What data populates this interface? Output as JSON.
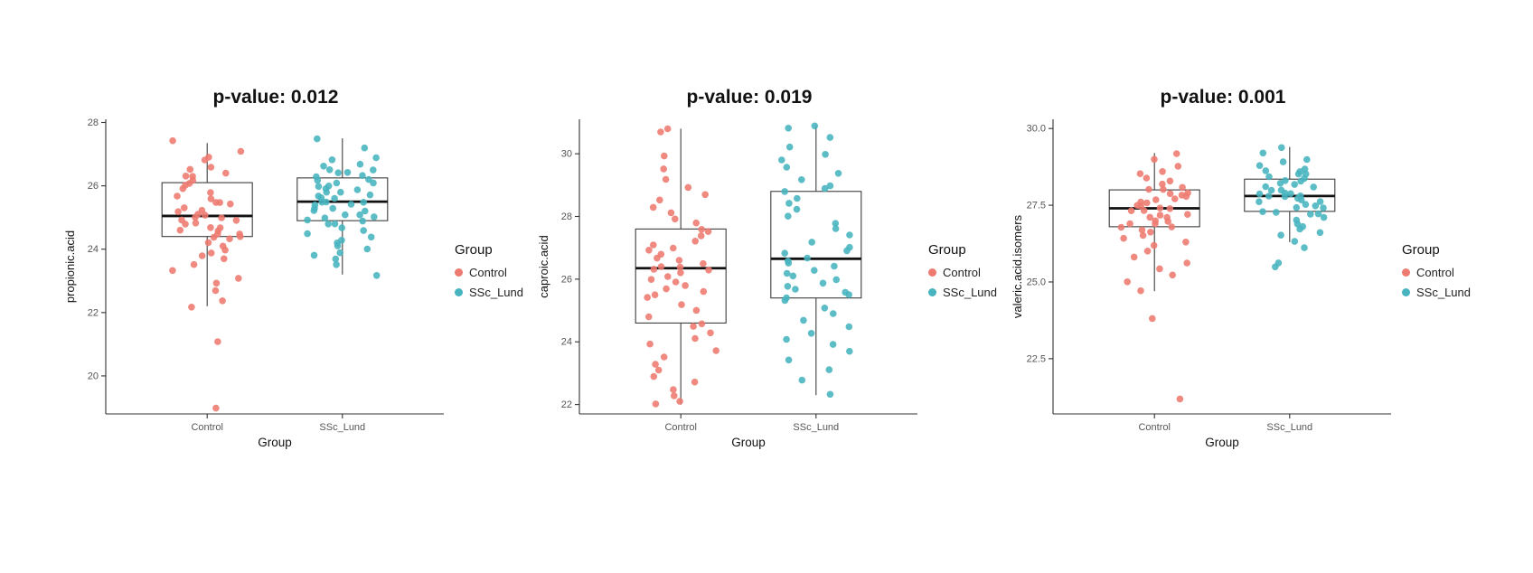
{
  "colors": {
    "control": "#EE7A70",
    "ssc_lund": "#47B4BF",
    "box_stroke": "#3d3d3d",
    "median": "#111111",
    "axis": "#333333",
    "tick_text": "#555555",
    "axis_title_text": "#111111"
  },
  "legend": {
    "title": "Group",
    "items": [
      {
        "label": "Control",
        "color_key": "control"
      },
      {
        "label": "SSc_Lund",
        "color_key": "ssc_lund"
      }
    ]
  },
  "chart_data": [
    {
      "type": "boxplot-jitter",
      "title": "p-value: 0.012",
      "ylabel": "propionic.acid",
      "xlabel": "Group",
      "categories": [
        "Control",
        "SSc_Lund"
      ],
      "ylim": [
        18.8,
        28.1
      ],
      "yticks": [
        20,
        22,
        24,
        26,
        28
      ],
      "ytick_labels": [
        "20",
        "22",
        "24",
        "26",
        "28"
      ],
      "grid": false,
      "legend_position": "right",
      "series": [
        {
          "name": "Control",
          "color_key": "control",
          "box": {
            "whisker_low": 22.2,
            "q1": 24.4,
            "median": 25.05,
            "q3": 26.1,
            "whisker_high": 27.35
          },
          "points": [
            27.4,
            27.1,
            26.9,
            26.8,
            26.6,
            26.5,
            26.4,
            26.3,
            26.3,
            26.2,
            26.1,
            26.0,
            25.9,
            25.8,
            25.7,
            25.6,
            25.5,
            25.5,
            25.4,
            25.3,
            25.2,
            25.2,
            25.1,
            25.1,
            25.0,
            25.0,
            24.9,
            24.9,
            24.8,
            24.8,
            24.7,
            24.7,
            24.6,
            24.6,
            24.5,
            24.5,
            24.4,
            24.4,
            24.3,
            24.2,
            24.1,
            24.0,
            23.9,
            23.8,
            23.7,
            23.5,
            23.3,
            23.1,
            22.9,
            22.7,
            22.4,
            22.2,
            21.1,
            19.0
          ]
        },
        {
          "name": "SSc_Lund",
          "color_key": "ssc_lund",
          "box": {
            "whisker_low": 23.2,
            "q1": 24.9,
            "median": 25.5,
            "q3": 26.25,
            "whisker_high": 27.5
          },
          "points": [
            27.5,
            27.2,
            26.9,
            26.8,
            26.7,
            26.6,
            26.5,
            26.5,
            26.4,
            26.4,
            26.3,
            26.3,
            26.2,
            26.2,
            26.1,
            26.1,
            26.0,
            26.0,
            25.9,
            25.9,
            25.8,
            25.8,
            25.7,
            25.7,
            25.6,
            25.6,
            25.5,
            25.5,
            25.5,
            25.4,
            25.4,
            25.3,
            25.3,
            25.2,
            25.2,
            25.1,
            25.1,
            25.0,
            25.0,
            24.9,
            24.9,
            24.8,
            24.8,
            24.7,
            24.6,
            24.5,
            24.4,
            24.3,
            24.2,
            24.1,
            24.0,
            23.9,
            23.8,
            23.7,
            23.5,
            23.2
          ]
        }
      ]
    },
    {
      "type": "boxplot-jitter",
      "title": "p-value: 0.019",
      "ylabel": "caproic.acid",
      "xlabel": "Group",
      "categories": [
        "Control",
        "SSc_Lund"
      ],
      "ylim": [
        21.7,
        31.1
      ],
      "yticks": [
        22,
        24,
        26,
        28,
        30
      ],
      "ytick_labels": [
        "22",
        "24",
        "26",
        "28",
        "30"
      ],
      "grid": false,
      "legend_position": "right",
      "series": [
        {
          "name": "Control",
          "color_key": "control",
          "box": {
            "whisker_low": 22.0,
            "q1": 24.6,
            "median": 26.35,
            "q3": 27.6,
            "whisker_high": 30.8
          },
          "points": [
            30.8,
            30.7,
            29.9,
            29.5,
            29.2,
            28.9,
            28.7,
            28.5,
            28.3,
            28.1,
            27.9,
            27.8,
            27.6,
            27.5,
            27.4,
            27.2,
            27.1,
            27.0,
            26.9,
            26.8,
            26.7,
            26.6,
            26.5,
            26.4,
            26.4,
            26.3,
            26.3,
            26.2,
            26.1,
            26.0,
            25.9,
            25.8,
            25.7,
            25.6,
            25.5,
            25.4,
            25.2,
            25.0,
            24.8,
            24.6,
            24.5,
            24.3,
            24.1,
            23.9,
            23.7,
            23.5,
            23.3,
            23.1,
            22.9,
            22.7,
            22.5,
            22.3,
            22.1,
            22.0
          ]
        },
        {
          "name": "SSc_Lund",
          "color_key": "ssc_lund",
          "box": {
            "whisker_low": 22.3,
            "q1": 25.4,
            "median": 26.65,
            "q3": 28.8,
            "whisker_high": 30.9
          },
          "points": [
            30.9,
            30.8,
            30.5,
            30.2,
            30.0,
            29.8,
            29.6,
            29.4,
            29.2,
            29.0,
            28.9,
            28.8,
            28.6,
            28.4,
            28.2,
            28.0,
            27.8,
            27.6,
            27.4,
            27.2,
            27.0,
            26.9,
            26.8,
            26.7,
            26.6,
            26.5,
            26.4,
            26.3,
            26.2,
            26.1,
            26.0,
            25.9,
            25.8,
            25.7,
            25.6,
            25.5,
            25.4,
            25.3,
            25.1,
            24.9,
            24.7,
            24.5,
            24.3,
            24.1,
            23.9,
            23.7,
            23.4,
            23.1,
            22.8,
            22.3
          ]
        }
      ]
    },
    {
      "type": "boxplot-jitter",
      "title": "p-value: 0.001",
      "ylabel": "valeric.acid.isomers",
      "xlabel": "Group",
      "categories": [
        "Control",
        "SSc_Lund"
      ],
      "ylim": [
        20.7,
        30.3
      ],
      "yticks": [
        22.5,
        25.0,
        27.5,
        30.0
      ],
      "ytick_labels": [
        "22.5",
        "25.0",
        "27.5",
        "30.0"
      ],
      "grid": false,
      "legend_position": "right",
      "series": [
        {
          "name": "Control",
          "color_key": "control",
          "box": {
            "whisker_low": 24.7,
            "q1": 26.8,
            "median": 27.4,
            "q3": 28.0,
            "whisker_high": 29.2
          },
          "points": [
            29.2,
            29.0,
            28.8,
            28.6,
            28.5,
            28.4,
            28.3,
            28.2,
            28.1,
            28.0,
            28.0,
            27.9,
            27.9,
            27.8,
            27.8,
            27.7,
            27.7,
            27.6,
            27.6,
            27.5,
            27.5,
            27.4,
            27.4,
            27.3,
            27.3,
            27.2,
            27.2,
            27.1,
            27.1,
            27.0,
            27.0,
            26.9,
            26.9,
            26.8,
            26.8,
            26.7,
            26.6,
            26.5,
            26.4,
            26.3,
            26.2,
            26.0,
            25.8,
            25.6,
            25.4,
            25.2,
            25.0,
            24.7,
            23.8,
            21.2
          ]
        },
        {
          "name": "SSc_Lund",
          "color_key": "ssc_lund",
          "box": {
            "whisker_low": 26.3,
            "q1": 27.3,
            "median": 27.8,
            "q3": 28.35,
            "whisker_high": 29.4
          },
          "points": [
            29.4,
            29.2,
            29.0,
            28.9,
            28.8,
            28.7,
            28.6,
            28.6,
            28.5,
            28.5,
            28.4,
            28.4,
            28.3,
            28.3,
            28.2,
            28.2,
            28.1,
            28.1,
            28.0,
            28.0,
            27.9,
            27.9,
            27.9,
            27.8,
            27.8,
            27.8,
            27.7,
            27.7,
            27.6,
            27.6,
            27.5,
            27.5,
            27.4,
            27.4,
            27.3,
            27.3,
            27.2,
            27.2,
            27.1,
            27.0,
            26.9,
            26.8,
            26.7,
            26.6,
            26.5,
            26.3,
            26.1,
            25.6,
            25.5
          ]
        }
      ]
    }
  ]
}
